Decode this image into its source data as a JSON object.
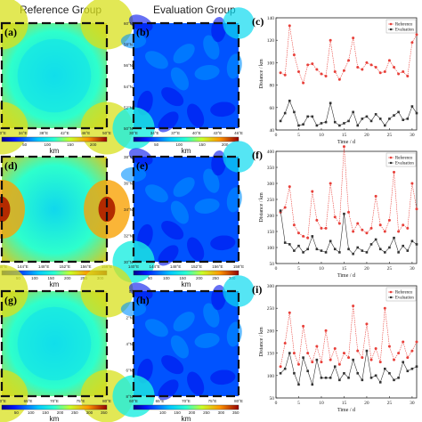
{
  "headers": {
    "reference": "Reference Group",
    "evaluation": "Evaluation Group"
  },
  "colorbar_unit": "km",
  "rows": [
    {
      "heatmaps": [
        {
          "label": "(a)",
          "field": "reference",
          "y_ticks": [],
          "x_ticks": [
            "30°E",
            "34°E",
            "38°E",
            "42°E",
            "46°E",
            "50°E"
          ],
          "cbar_ticks": [
            "50",
            "100",
            "150",
            "200"
          ],
          "cbar_max": 230
        },
        {
          "label": "(b)",
          "field": "evaluation",
          "y_ticks": [
            "50°N",
            "52°N",
            "54°N",
            "56°N",
            "58°N",
            "60°N"
          ],
          "x_ticks": [
            "30°E",
            "34°E",
            "37°E",
            "40°E",
            "43°E",
            "46°E"
          ],
          "cbar_ticks": [
            "50",
            "100",
            "150",
            "200"
          ],
          "cbar_max": 230
        }
      ]
    },
    {
      "heatmaps": [
        {
          "label": "(d)",
          "field": "reference",
          "y_ticks": [],
          "x_ticks": [
            "140°E",
            "144°E",
            "148°E",
            "152°E",
            "156°E",
            "158°E"
          ],
          "cbar_ticks": [
            "50",
            "100",
            "150",
            "200",
            "250",
            "300"
          ],
          "cbar_max": 320
        },
        {
          "label": "(e)",
          "field": "evaluation",
          "y_ticks": [
            "30°N",
            "32°N",
            "34°N",
            "36°N",
            "38°N"
          ],
          "x_ticks": [
            "140°E",
            "144°E",
            "148°E",
            "152°E",
            "156°E",
            "158°E"
          ],
          "cbar_ticks": [
            "50",
            "100",
            "150",
            "200",
            "250",
            "300"
          ],
          "cbar_max": 320
        }
      ]
    },
    {
      "heatmaps": [
        {
          "label": "(g)",
          "field": "reference",
          "y_ticks": [],
          "x_ticks": [
            "60°E",
            "65°E",
            "70°E",
            "75°E",
            "80°E"
          ],
          "cbar_ticks": [
            "50",
            "100",
            "150",
            "200",
            "250",
            "300",
            "350"
          ],
          "cbar_max": 360
        },
        {
          "label": "(h)",
          "field": "evaluation",
          "y_ticks": [
            "8°N",
            "6°N",
            "4°N",
            "2°N",
            "0°"
          ],
          "x_ticks": [
            "60°E",
            "65°E",
            "70°E",
            "75°E",
            "80°E"
          ],
          "cbar_ticks": [
            "100",
            "150",
            "200",
            "250",
            "300",
            "350"
          ],
          "cbar_max": 360
        }
      ]
    }
  ],
  "chart_data": [
    {
      "type": "line",
      "label": "(c)",
      "xlabel": "Time / d",
      "ylabel": "Distance / km",
      "xlim": [
        0,
        31
      ],
      "ylim": [
        40,
        140
      ],
      "x_ticks": [
        0,
        5,
        10,
        15,
        20,
        25,
        30
      ],
      "y_ticks": [
        40,
        60,
        80,
        100,
        120,
        140
      ],
      "x": [
        1,
        2,
        3,
        4,
        5,
        6,
        7,
        8,
        9,
        10,
        11,
        12,
        13,
        14,
        15,
        16,
        17,
        18,
        19,
        20,
        21,
        22,
        23,
        24,
        25,
        26,
        27,
        28,
        29,
        30,
        31
      ],
      "series": [
        {
          "name": "Reference",
          "color": "#e8403a",
          "values": [
            91,
            89,
            133,
            107,
            92,
            82,
            98,
            99,
            94,
            90,
            88,
            120,
            92,
            85,
            93,
            102,
            122,
            96,
            94,
            100,
            98,
            96,
            91,
            92,
            102,
            96,
            90,
            92,
            88,
            118,
            125
          ]
        },
        {
          "name": "Evaluation",
          "color": "#333333",
          "values": [
            48,
            55,
            66,
            56,
            44,
            45,
            52,
            52,
            44,
            46,
            47,
            64,
            47,
            44,
            46,
            48,
            56,
            44,
            50,
            52,
            48,
            54,
            50,
            44,
            50,
            53,
            56,
            49,
            50,
            61,
            55
          ]
        }
      ],
      "legend": "top-right"
    },
    {
      "type": "line",
      "label": "(f)",
      "xlabel": "Time / d",
      "ylabel": "Distance / km",
      "xlim": [
        0,
        31
      ],
      "ylim": [
        50,
        400
      ],
      "x_ticks": [
        0,
        5,
        10,
        15,
        20,
        25,
        30
      ],
      "y_ticks": [
        50,
        100,
        150,
        200,
        250,
        300,
        350,
        400
      ],
      "x": [
        1,
        2,
        3,
        4,
        5,
        6,
        7,
        8,
        9,
        10,
        11,
        12,
        13,
        14,
        15,
        16,
        17,
        18,
        19,
        20,
        21,
        22,
        23,
        24,
        25,
        26,
        27,
        28,
        29,
        30,
        31
      ],
      "series": [
        {
          "name": "Reference",
          "color": "#e8403a",
          "values": [
            210,
            225,
            290,
            170,
            145,
            135,
            130,
            275,
            185,
            160,
            160,
            300,
            195,
            175,
            415,
            210,
            150,
            175,
            155,
            145,
            160,
            260,
            170,
            150,
            185,
            335,
            150,
            170,
            160,
            300,
            220
          ]
        },
        {
          "name": "Evaluation",
          "color": "#333333",
          "values": [
            215,
            115,
            110,
            90,
            105,
            85,
            95,
            135,
            95,
            90,
            85,
            120,
            95,
            85,
            205,
            95,
            80,
            100,
            90,
            85,
            110,
            125,
            95,
            85,
            100,
            130,
            85,
            105,
            90,
            120,
            110
          ]
        }
      ],
      "legend": "top-right"
    },
    {
      "type": "line",
      "label": "(i)",
      "xlabel": "Time / d",
      "ylabel": "Distance / km",
      "xlim": [
        0,
        31
      ],
      "ylim": [
        50,
        300
      ],
      "x_ticks": [
        0,
        5,
        10,
        15,
        20,
        25,
        30
      ],
      "y_ticks": [
        50,
        100,
        150,
        200,
        250,
        300
      ],
      "x": [
        1,
        2,
        3,
        4,
        5,
        6,
        7,
        8,
        9,
        10,
        11,
        12,
        13,
        14,
        15,
        16,
        17,
        18,
        19,
        20,
        21,
        22,
        23,
        24,
        25,
        26,
        27,
        28,
        29,
        30,
        31
      ],
      "series": [
        {
          "name": "Reference",
          "color": "#e8403a",
          "values": [
            120,
            172,
            240,
            150,
            125,
            210,
            150,
            130,
            165,
            130,
            200,
            135,
            160,
            125,
            150,
            140,
            255,
            155,
            140,
            215,
            135,
            160,
            130,
            250,
            165,
            135,
            150,
            175,
            140,
            155,
            175
          ]
        },
        {
          "name": "Evaluation",
          "color": "#333333",
          "values": [
            105,
            115,
            150,
            105,
            80,
            140,
            110,
            80,
            135,
            95,
            95,
            95,
            120,
            90,
            105,
            95,
            135,
            105,
            90,
            155,
            95,
            100,
            85,
            115,
            105,
            90,
            95,
            130,
            110,
            115,
            120
          ]
        }
      ],
      "legend": "top-right"
    }
  ]
}
